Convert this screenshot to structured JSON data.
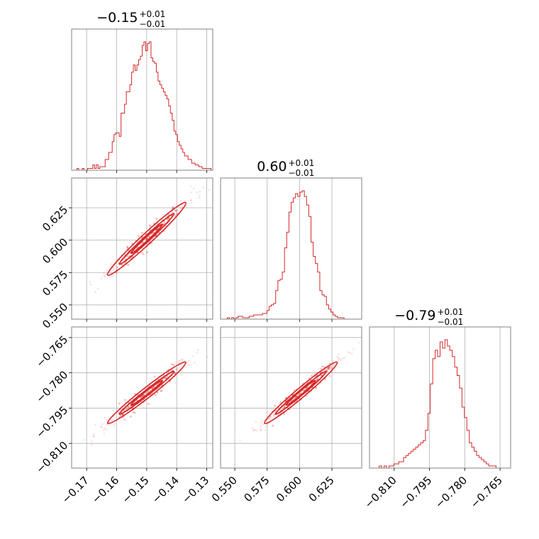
{
  "chart_data": {
    "type": "corner",
    "color": "#d62728",
    "parameters": [
      {
        "title_value": "−0.15",
        "title_plus": "+0.01",
        "title_minus": "−0.01",
        "range": [
          -0.175,
          -0.128
        ],
        "median": -0.15,
        "sigma": 0.0065,
        "ticks": [
          -0.17,
          -0.16,
          -0.15,
          -0.14,
          -0.13
        ],
        "tick_labels": [
          "−0.17",
          "−0.16",
          "−0.15",
          "−0.14",
          "−0.13"
        ],
        "hist": [
          0,
          0,
          0,
          1,
          0,
          0,
          1,
          0,
          0,
          1,
          1,
          1,
          3,
          1,
          3,
          1,
          2,
          2,
          2,
          6,
          6,
          10,
          10,
          16,
          20,
          21,
          21,
          19,
          32,
          32,
          37,
          44,
          44,
          48,
          55,
          59,
          56,
          59,
          62,
          64,
          70,
          72,
          67,
          71,
          72,
          63,
          61,
          60,
          55,
          50,
          48,
          46,
          44,
          42,
          40,
          36,
          32,
          28,
          22,
          20,
          16,
          14,
          12,
          10,
          8,
          8,
          6,
          6,
          4,
          4,
          3,
          3,
          2,
          2,
          1,
          1,
          1,
          1,
          1,
          0
        ]
      },
      {
        "title_value": "0.60",
        "title_plus": "+0.01",
        "title_minus": "−0.01",
        "range": [
          0.539,
          0.648
        ],
        "median": 0.601,
        "sigma": 0.014,
        "ticks": [
          0.55,
          0.575,
          0.6,
          0.625
        ],
        "tick_labels": [
          "0.550",
          "0.575",
          "0.600",
          "0.625"
        ],
        "hist": [
          0,
          0,
          0,
          1,
          0,
          1,
          0,
          1,
          2,
          2,
          1,
          1,
          1,
          2,
          2,
          3,
          3,
          3,
          3,
          4,
          4,
          6,
          9,
          10,
          11,
          20,
          27,
          28,
          33,
          50,
          61,
          75,
          82,
          85,
          88,
          86,
          89,
          90,
          86,
          80,
          72,
          54,
          44,
          39,
          33,
          20,
          17,
          16,
          10,
          7,
          5,
          3,
          2,
          1,
          1,
          1,
          0,
          0,
          0,
          0,
          0,
          0,
          0,
          0
        ]
      },
      {
        "title_value": "−0.79",
        "title_plus": "+0.01",
        "title_minus": "−0.01",
        "range": [
          -0.8205,
          -0.7605
        ],
        "median": -0.7885,
        "sigma": 0.0065,
        "ticks": [
          -0.81,
          -0.795,
          -0.78,
          -0.765
        ],
        "tick_labels": [
          "−0.810",
          "−0.795",
          "−0.780",
          "−0.765"
        ],
        "hist": [
          0,
          0,
          0,
          0,
          1,
          0,
          1,
          0,
          1,
          1,
          2,
          2,
          3,
          3,
          5,
          6,
          7,
          8,
          9,
          10,
          11,
          12,
          13,
          18,
          26,
          40,
          52,
          56,
          53,
          60,
          57,
          61,
          58,
          56,
          53,
          48,
          44,
          38,
          29,
          24,
          18,
          12,
          10,
          8,
          6,
          5,
          4,
          3,
          2,
          1,
          1,
          1,
          0,
          0,
          0,
          0,
          0,
          0
        ]
      }
    ],
    "xlabel": "",
    "ylabel": "",
    "grid": true
  }
}
